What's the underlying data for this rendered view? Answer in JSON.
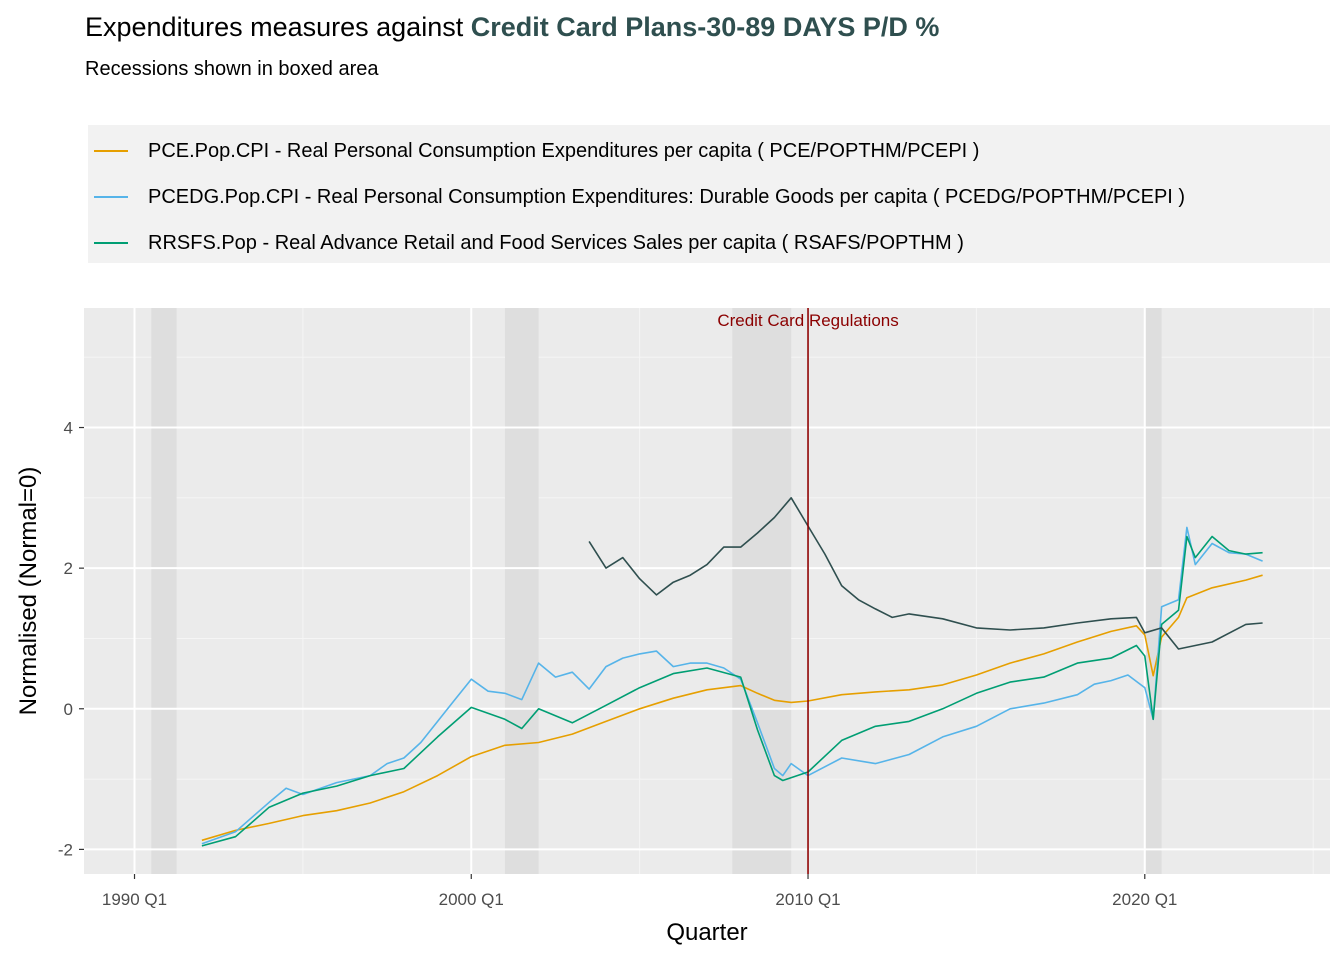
{
  "title_prefix": "Expenditures measures against ",
  "title_accent": "Credit Card Plans-30-89 DAYS P/D %",
  "subtitle": "Recessions shown in boxed area",
  "colors": {
    "accent": "#2F4F4F",
    "panel": "#EBEBEB",
    "legend_bg": "#F2F2F2",
    "recession": "#DEDEDE",
    "regulation": "#8B0000"
  },
  "chart_data": {
    "type": "line",
    "title": "Expenditures measures against Credit Card Plans-30-89 DAYS P/D %",
    "subtitle": "Recessions shown in boxed area",
    "xlabel": "Quarter",
    "ylabel": "Normalised (Normal=0)",
    "xlim": [
      "1988 Q3",
      "2025 Q3"
    ],
    "ylim": [
      -2.35,
      5.7
    ],
    "x_ticks": [
      "1990 Q1",
      "2000 Q1",
      "2010 Q1",
      "2020 Q1"
    ],
    "y_ticks": [
      -2,
      0,
      2,
      4
    ],
    "y_tick_labels": [
      "-2",
      "0",
      "2",
      "4"
    ],
    "grid": true,
    "legend_position": "top",
    "recessions": [
      {
        "start": "1990 Q3",
        "end": "1991 Q1"
      },
      {
        "start": "2001 Q1",
        "end": "2001 Q4"
      },
      {
        "start": "2007 Q4",
        "end": "2009 Q2"
      },
      {
        "start": "2020 Q1",
        "end": "2020 Q2"
      }
    ],
    "annotation": {
      "label": "Credit Card Regulations",
      "x": "2010 Q1"
    },
    "series": [
      {
        "name": "PCE.Pop.CPI - Real Personal Consumption Expenditures per capita ( PCE/POPTHM/PCEPI )",
        "color": "#E69F00",
        "points": [
          [
            "1992 Q1",
            -1.87
          ],
          [
            "1993 Q1",
            -1.73
          ],
          [
            "1994 Q1",
            -1.63
          ],
          [
            "1995 Q1",
            -1.52
          ],
          [
            "1996 Q1",
            -1.45
          ],
          [
            "1997 Q1",
            -1.34
          ],
          [
            "1998 Q1",
            -1.18
          ],
          [
            "1999 Q1",
            -0.95
          ],
          [
            "2000 Q1",
            -0.68
          ],
          [
            "2001 Q1",
            -0.52
          ],
          [
            "2002 Q1",
            -0.48
          ],
          [
            "2003 Q1",
            -0.36
          ],
          [
            "2004 Q1",
            -0.18
          ],
          [
            "2005 Q1",
            0.0
          ],
          [
            "2006 Q1",
            0.15
          ],
          [
            "2007 Q1",
            0.27
          ],
          [
            "2008 Q1",
            0.33
          ],
          [
            "2008 Q3",
            0.22
          ],
          [
            "2009 Q1",
            0.12
          ],
          [
            "2009 Q3",
            0.09
          ],
          [
            "2010 Q1",
            0.11
          ],
          [
            "2011 Q1",
            0.2
          ],
          [
            "2012 Q1",
            0.24
          ],
          [
            "2013 Q1",
            0.27
          ],
          [
            "2014 Q1",
            0.34
          ],
          [
            "2015 Q1",
            0.48
          ],
          [
            "2016 Q1",
            0.65
          ],
          [
            "2017 Q1",
            0.78
          ],
          [
            "2018 Q1",
            0.95
          ],
          [
            "2019 Q1",
            1.1
          ],
          [
            "2019 Q4",
            1.18
          ],
          [
            "2020 Q1",
            1.05
          ],
          [
            "2020 Q2",
            0.47
          ],
          [
            "2020 Q3",
            1.02
          ],
          [
            "2021 Q1",
            1.3
          ],
          [
            "2021 Q2",
            1.58
          ],
          [
            "2022 Q1",
            1.72
          ],
          [
            "2023 Q1",
            1.83
          ],
          [
            "2023 Q3",
            1.9
          ]
        ]
      },
      {
        "name": "PCEDG.Pop.CPI - Real Personal Consumption Expenditures: Durable Goods per capita ( PCEDG/POPTHM/PCEPI )",
        "color": "#56B4E9",
        "points": [
          [
            "1992 Q1",
            -1.92
          ],
          [
            "1993 Q1",
            -1.75
          ],
          [
            "1994 Q1",
            -1.33
          ],
          [
            "1994 Q3",
            -1.13
          ],
          [
            "1995 Q1",
            -1.22
          ],
          [
            "1996 Q1",
            -1.05
          ],
          [
            "1997 Q1",
            -0.95
          ],
          [
            "1997 Q3",
            -0.78
          ],
          [
            "1998 Q1",
            -0.7
          ],
          [
            "1998 Q3",
            -0.48
          ],
          [
            "1999 Q1",
            -0.18
          ],
          [
            "1999 Q3",
            0.12
          ],
          [
            "2000 Q1",
            0.42
          ],
          [
            "2000 Q3",
            0.25
          ],
          [
            "2001 Q1",
            0.22
          ],
          [
            "2001 Q3",
            0.13
          ],
          [
            "2002 Q1",
            0.65
          ],
          [
            "2002 Q3",
            0.45
          ],
          [
            "2003 Q1",
            0.52
          ],
          [
            "2003 Q3",
            0.28
          ],
          [
            "2004 Q1",
            0.6
          ],
          [
            "2004 Q3",
            0.72
          ],
          [
            "2005 Q1",
            0.78
          ],
          [
            "2005 Q3",
            0.82
          ],
          [
            "2006 Q1",
            0.6
          ],
          [
            "2006 Q3",
            0.65
          ],
          [
            "2007 Q1",
            0.65
          ],
          [
            "2007 Q3",
            0.58
          ],
          [
            "2008 Q1",
            0.42
          ],
          [
            "2008 Q3",
            -0.2
          ],
          [
            "2009 Q1",
            -0.85
          ],
          [
            "2009 Q2",
            -0.95
          ],
          [
            "2009 Q3",
            -0.78
          ],
          [
            "2010 Q1",
            -0.95
          ],
          [
            "2011 Q1",
            -0.7
          ],
          [
            "2012 Q1",
            -0.78
          ],
          [
            "2013 Q1",
            -0.65
          ],
          [
            "2014 Q1",
            -0.4
          ],
          [
            "2015 Q1",
            -0.25
          ],
          [
            "2016 Q1",
            0.0
          ],
          [
            "2017 Q1",
            0.08
          ],
          [
            "2018 Q1",
            0.2
          ],
          [
            "2018 Q3",
            0.35
          ],
          [
            "2019 Q1",
            0.4
          ],
          [
            "2019 Q3",
            0.48
          ],
          [
            "2020 Q1",
            0.3
          ],
          [
            "2020 Q2",
            -0.15
          ],
          [
            "2020 Q3",
            1.45
          ],
          [
            "2021 Q1",
            1.55
          ],
          [
            "2021 Q2",
            2.58
          ],
          [
            "2021 Q3",
            2.05
          ],
          [
            "2022 Q1",
            2.35
          ],
          [
            "2022 Q3",
            2.22
          ],
          [
            "2023 Q1",
            2.2
          ],
          [
            "2023 Q3",
            2.1
          ]
        ]
      },
      {
        "name": "RRSFS.Pop - Real Advance Retail and Food Services Sales per capita ( RSAFS/POPTHM )",
        "color": "#009E73",
        "points": [
          [
            "1992 Q1",
            -1.95
          ],
          [
            "1993 Q1",
            -1.82
          ],
          [
            "1994 Q1",
            -1.4
          ],
          [
            "1995 Q1",
            -1.2
          ],
          [
            "1996 Q1",
            -1.1
          ],
          [
            "1997 Q1",
            -0.95
          ],
          [
            "1998 Q1",
            -0.85
          ],
          [
            "1999 Q1",
            -0.4
          ],
          [
            "2000 Q1",
            0.02
          ],
          [
            "2001 Q1",
            -0.15
          ],
          [
            "2001 Q3",
            -0.28
          ],
          [
            "2002 Q1",
            0.0
          ],
          [
            "2003 Q1",
            -0.2
          ],
          [
            "2004 Q1",
            0.05
          ],
          [
            "2005 Q1",
            0.3
          ],
          [
            "2006 Q1",
            0.5
          ],
          [
            "2007 Q1",
            0.58
          ],
          [
            "2008 Q1",
            0.45
          ],
          [
            "2008 Q3",
            -0.3
          ],
          [
            "2009 Q1",
            -0.95
          ],
          [
            "2009 Q2",
            -1.02
          ],
          [
            "2010 Q1",
            -0.9
          ],
          [
            "2011 Q1",
            -0.45
          ],
          [
            "2012 Q1",
            -0.25
          ],
          [
            "2013 Q1",
            -0.18
          ],
          [
            "2014 Q1",
            0.0
          ],
          [
            "2015 Q1",
            0.22
          ],
          [
            "2016 Q1",
            0.38
          ],
          [
            "2017 Q1",
            0.45
          ],
          [
            "2018 Q1",
            0.65
          ],
          [
            "2019 Q1",
            0.72
          ],
          [
            "2019 Q4",
            0.9
          ],
          [
            "2020 Q1",
            0.75
          ],
          [
            "2020 Q2",
            -0.15
          ],
          [
            "2020 Q3",
            1.2
          ],
          [
            "2021 Q1",
            1.4
          ],
          [
            "2021 Q2",
            2.45
          ],
          [
            "2021 Q3",
            2.15
          ],
          [
            "2022 Q1",
            2.45
          ],
          [
            "2022 Q3",
            2.25
          ],
          [
            "2023 Q1",
            2.2
          ],
          [
            "2023 Q3",
            2.22
          ]
        ]
      },
      {
        "name": "",
        "color": "#2F4F4F",
        "points": [
          [
            "2003 Q3",
            2.38
          ],
          [
            "2004 Q1",
            2.0
          ],
          [
            "2004 Q3",
            2.15
          ],
          [
            "2005 Q1",
            1.85
          ],
          [
            "2005 Q3",
            1.62
          ],
          [
            "2006 Q1",
            1.8
          ],
          [
            "2006 Q3",
            1.9
          ],
          [
            "2007 Q1",
            2.05
          ],
          [
            "2007 Q3",
            2.3
          ],
          [
            "2008 Q1",
            2.3
          ],
          [
            "2008 Q3",
            2.5
          ],
          [
            "2009 Q1",
            2.72
          ],
          [
            "2009 Q3",
            3.0
          ],
          [
            "2010 Q1",
            2.6
          ],
          [
            "2010 Q3",
            2.2
          ],
          [
            "2011 Q1",
            1.75
          ],
          [
            "2011 Q3",
            1.55
          ],
          [
            "2012 Q1",
            1.42
          ],
          [
            "2012 Q3",
            1.3
          ],
          [
            "2013 Q1",
            1.35
          ],
          [
            "2014 Q1",
            1.28
          ],
          [
            "2015 Q1",
            1.15
          ],
          [
            "2016 Q1",
            1.12
          ],
          [
            "2017 Q1",
            1.15
          ],
          [
            "2018 Q1",
            1.22
          ],
          [
            "2019 Q1",
            1.28
          ],
          [
            "2019 Q4",
            1.3
          ],
          [
            "2020 Q1",
            1.08
          ],
          [
            "2020 Q3",
            1.15
          ],
          [
            "2021 Q1",
            0.85
          ],
          [
            "2022 Q1",
            0.95
          ],
          [
            "2023 Q1",
            1.2
          ],
          [
            "2023 Q3",
            1.22
          ]
        ]
      }
    ]
  }
}
